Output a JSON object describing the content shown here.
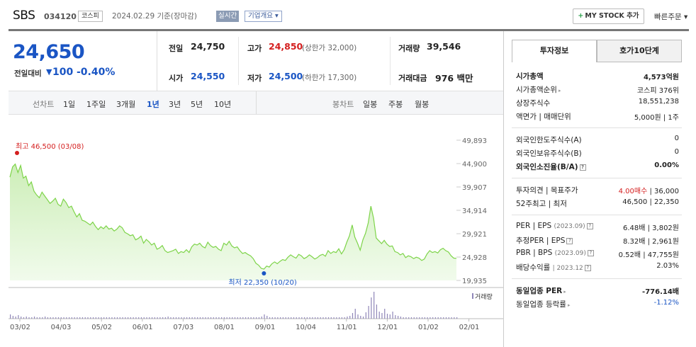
{
  "header": {
    "name": "SBS",
    "code": "034120",
    "market": "코스피",
    "as_of": "2024.02.29  기준(장마감)",
    "realtime": "실시간",
    "company": "기업개요 ▾",
    "mystock": "MY STOCK 추가",
    "mystock_icon": "+",
    "quick": "빠른주문 ▾"
  },
  "price": {
    "current": "24,650",
    "change_label": "전일대비",
    "change_arrow": "▼",
    "change_amount": "100",
    "change_pct": "-0.40%"
  },
  "stats": {
    "prev_label": "전일",
    "prev": "24,750",
    "high_label": "고가",
    "high": "24,850",
    "upper_limit": "(상한가 32,000)",
    "volume_label": "거래량",
    "volume": "39,546",
    "open_label": "시가",
    "open": "24,550",
    "low_label": "저가",
    "low": "24,500",
    "lower_limit": "(하한가 17,300)",
    "amount_label": "거래대금",
    "amount": "976 백만"
  },
  "periods": {
    "line_label": "선차트",
    "items": [
      "1일",
      "1주일",
      "3개월",
      "1년",
      "3년",
      "5년",
      "10년"
    ],
    "active": "1년",
    "candle_label": "봉차트",
    "candles": [
      "일봉",
      "주봉",
      "월봉"
    ]
  },
  "chart_data": {
    "type": "area",
    "x_ticks": [
      "03/02",
      "04/03",
      "05/02",
      "06/01",
      "07/03",
      "08/01",
      "09/01",
      "10/04",
      "11/01",
      "12/01",
      "01/02",
      "02/01"
    ],
    "y_ticks": [
      49893,
      44900,
      39907,
      34914,
      29921,
      24928,
      19935
    ],
    "ylim": [
      19935,
      49893
    ],
    "high_label": "최고 46,500 (03/08)",
    "low_label": "최저 22,350 (10/20)",
    "volume_label": "거래량",
    "series": [
      {
        "values": [
          42000,
          44200,
          44800,
          43000,
          44500,
          41800,
          42200,
          40200,
          41000,
          39000,
          38200,
          37600,
          38800,
          38000,
          37200,
          36400,
          36900,
          37500,
          36200,
          35800,
          37300,
          36600,
          35500,
          35800,
          34600,
          33500,
          34200,
          32800,
          32600,
          32200,
          31800,
          32400,
          31500,
          30800,
          31400,
          31000,
          31600,
          30900,
          31100,
          30500,
          30900,
          31600,
          31200,
          30200,
          29900,
          29500,
          29700,
          28600,
          28900,
          29400,
          27900,
          28700,
          28200,
          27500,
          27900,
          26600,
          26900,
          27400,
          26300,
          25900,
          26100,
          26300,
          26600,
          25700,
          26100,
          25900,
          26500,
          25900,
          27100,
          27700,
          27500,
          27900,
          27200,
          26900,
          28100,
          27400,
          27000,
          27200,
          26600,
          26300,
          27900,
          27500,
          28300,
          27300,
          26900,
          27100,
          26300,
          25700,
          25900,
          25500,
          25200,
          24600,
          23600,
          23200,
          22500,
          22350,
          23000,
          22800,
          23500,
          23900,
          23500,
          24000,
          24400,
          24200,
          24900,
          25400,
          25000,
          24700,
          25500,
          25200,
          24600,
          24900,
          25400,
          25000,
          24500,
          24800,
          25300,
          25500,
          25100,
          26300,
          25700,
          26100,
          25900,
          26700,
          25600,
          26500,
          28100,
          29500,
          31800,
          29200,
          27900,
          26400,
          28600,
          30000,
          32200,
          35800,
          33200,
          29000,
          28400,
          27800,
          28500,
          27700,
          27200,
          27300,
          26100,
          25900,
          25400,
          25700,
          24800,
          25200,
          25000,
          24600,
          24900,
          24700,
          24200,
          24500,
          25600,
          26300,
          25900,
          26100,
          25800,
          26500,
          26800,
          26300,
          26000,
          25200,
          24700,
          24650
        ]
      }
    ],
    "volumes": [
      6,
      4,
      3,
      5,
      3,
      2,
      3,
      2,
      2,
      3,
      2,
      2,
      2,
      3,
      2,
      2,
      2,
      2,
      2,
      2,
      2,
      2,
      2,
      2,
      2,
      2,
      2,
      2,
      2,
      2,
      2,
      2,
      2,
      2,
      2,
      2,
      2,
      2,
      2,
      2,
      2,
      2,
      2,
      2,
      2,
      2,
      2,
      2,
      2,
      2,
      2,
      2,
      2,
      2,
      2,
      2,
      2,
      2,
      2,
      3,
      2,
      2,
      2,
      2,
      2,
      2,
      2,
      2,
      2,
      2,
      2,
      2,
      2,
      2,
      2,
      2,
      2,
      2,
      2,
      2,
      2,
      2,
      2,
      2,
      2,
      2,
      2,
      2,
      2,
      2,
      2,
      2,
      2,
      2,
      3,
      6,
      4,
      2,
      2,
      2,
      2,
      2,
      2,
      2,
      2,
      2,
      2,
      2,
      2,
      2,
      2,
      2,
      2,
      2,
      2,
      2,
      2,
      2,
      2,
      2,
      2,
      2,
      2,
      2,
      2,
      2,
      3,
      4,
      8,
      14,
      6,
      4,
      3,
      9,
      18,
      30,
      38,
      20,
      10,
      8,
      14,
      7,
      6,
      10,
      5,
      4,
      3,
      2,
      2,
      2,
      2,
      2,
      2,
      2,
      2,
      2,
      2,
      2,
      2,
      2,
      2,
      2,
      2,
      2,
      2,
      2,
      2,
      2
    ]
  },
  "right": {
    "tabs": [
      "투자정보",
      "호가10단계"
    ],
    "active_tab": "투자정보",
    "rows": {
      "mcap_k": "시가총액",
      "mcap_v": "4,573억원",
      "mcap_rank_k": "시가총액순위",
      "mcap_rank_v": "코스피 376위",
      "shares_k": "상장주식수",
      "shares_v": "18,551,238",
      "par_k": "액면가 | 매매단위",
      "par_v": "5,000원 | 1주",
      "foreign_limit_k": "외국인한도주식수(A)",
      "foreign_limit_v": "0",
      "foreign_hold_k": "외국인보유주식수(B)",
      "foreign_hold_v": "0",
      "foreign_ratio_k": "외국인소진율(B/A)",
      "foreign_ratio_v": "0.00%",
      "opinion_k": "투자의견 | 목표주가",
      "opinion_v1": "4.00매수",
      "opinion_v2": " | 36,000",
      "w52_k": "52주최고 | 최저",
      "w52_v": "46,500 | 22,350",
      "per_k": "PER | EPS",
      "per_year": "(2023.09)",
      "per_v": "6.48배 | 3,802원",
      "est_per_k": "추정PER | EPS",
      "est_per_v": "8.32배 | 2,961원",
      "pbr_k": "PBR | BPS",
      "pbr_year": "(2023.09)",
      "pbr_v": "0.52배 | 47,755원",
      "div_k": "배당수익률",
      "div_year": "| 2023.12",
      "div_v": "2.03%",
      "ind_per_k": "동일업종 PER",
      "ind_per_v": "-776.14배",
      "ind_chg_k": "동일업종 등락률",
      "ind_chg_v": "-1.12%"
    }
  },
  "colors": {
    "up": "#d41e1e",
    "down": "#1a55c4",
    "line": "#7ed44a",
    "fill": "#d9f5c8"
  }
}
